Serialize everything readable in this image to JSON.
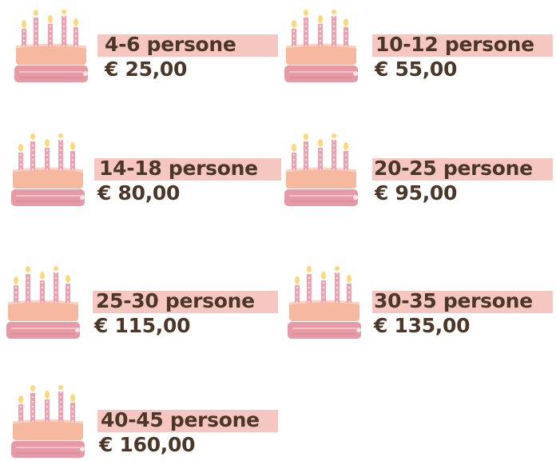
{
  "items": [
    {
      "label": "4-6 persone",
      "price": "€ 25,00"
    },
    {
      "label": "10-12 persone",
      "price": "€ 55,00"
    },
    {
      "label": "14-18 persone",
      "price": "€ 80,00"
    },
    {
      "label": "20-25 persone",
      "price": "€ 95,00"
    },
    {
      "label": "25-30 persone",
      "price": "€ 115,00"
    },
    {
      "label": "30-35 persone",
      "price": "€ 135,00"
    },
    {
      "label": "40-45 persone",
      "price": "€ 160,00"
    }
  ]
}
